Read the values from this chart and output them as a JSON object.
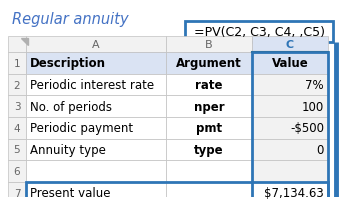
{
  "title": "Regular annuity",
  "formula_box": "=PV(C2, C3, C4, ,C5)",
  "col_headers": [
    "A",
    "B",
    "C"
  ],
  "header_row": [
    "Description",
    "Argument",
    "Value"
  ],
  "rows": [
    [
      "Periodic interest rate",
      "rate",
      "7%"
    ],
    [
      "No. of periods",
      "nper",
      "100"
    ],
    [
      "Periodic payment",
      "pmt",
      "-$500"
    ],
    [
      "Annuity type",
      "type",
      "0"
    ],
    [
      "",
      "",
      ""
    ],
    [
      "Present value",
      "",
      "$7,134.63"
    ]
  ],
  "bg_header_row": "#dae3f3",
  "bg_col_c": "#f2f2f2",
  "bg_col_c_selected": "#dae3f3",
  "bg_white": "#ffffff",
  "bg_row_header": "#f2f2f2",
  "border_normal": "#c0c0c0",
  "border_blue": "#2e75b6",
  "border_green": "#375623",
  "title_color": "#4472c4",
  "arrow_color": "#2e75b6",
  "formula_text_color": "#000000",
  "row_num_color": "#666666",
  "col_letter_color": "#666666",
  "col_c_letter_color": "#2e75b6"
}
